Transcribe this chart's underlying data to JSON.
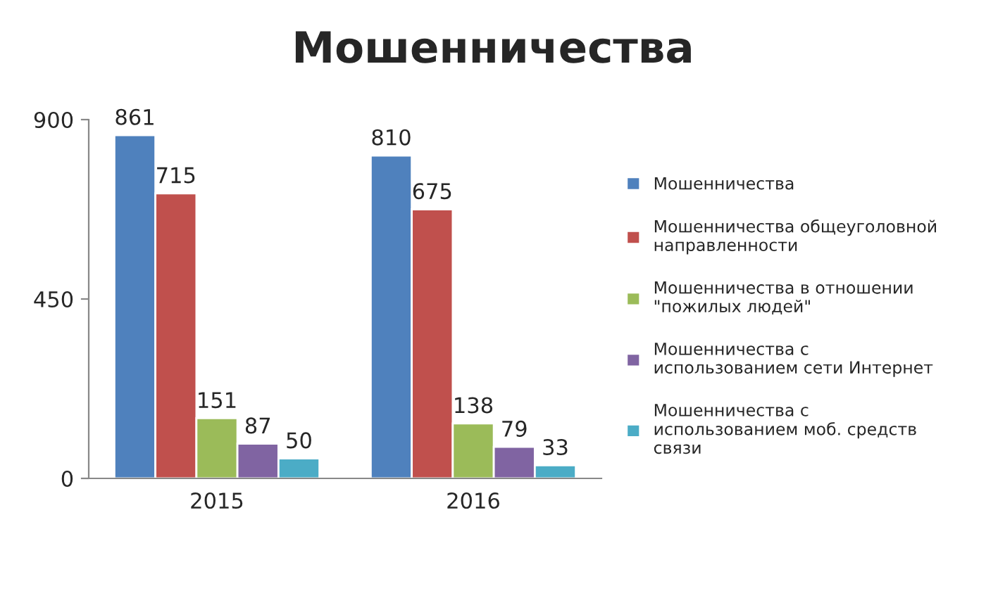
{
  "chart_data": {
    "type": "bar",
    "title": "Мошенничества",
    "categories": [
      "2015",
      "2016"
    ],
    "series": [
      {
        "name": "Мошенничества",
        "color": "#4f81bd",
        "values": [
          861,
          810
        ]
      },
      {
        "name": "Мошенничества общеуголовной\nнаправленности",
        "color": "#c0504d",
        "values": [
          715,
          675
        ]
      },
      {
        "name": "Мошенничества в отношении\n\"пожилых людей\"",
        "color": "#9bbb59",
        "values": [
          151,
          138
        ]
      },
      {
        "name": "Мошенничества с\nиспользованием сети Интернет",
        "color": "#8064a2",
        "values": [
          87,
          79
        ]
      },
      {
        "name": "Мошенничества с\nиспользованием моб. средств\nсвязи",
        "color": "#4bacc6",
        "values": [
          50,
          33
        ]
      }
    ],
    "ylim": [
      0,
      900
    ],
    "yticks": [
      0,
      450,
      900
    ],
    "data_labels": true,
    "grid": false,
    "legend": "right"
  }
}
